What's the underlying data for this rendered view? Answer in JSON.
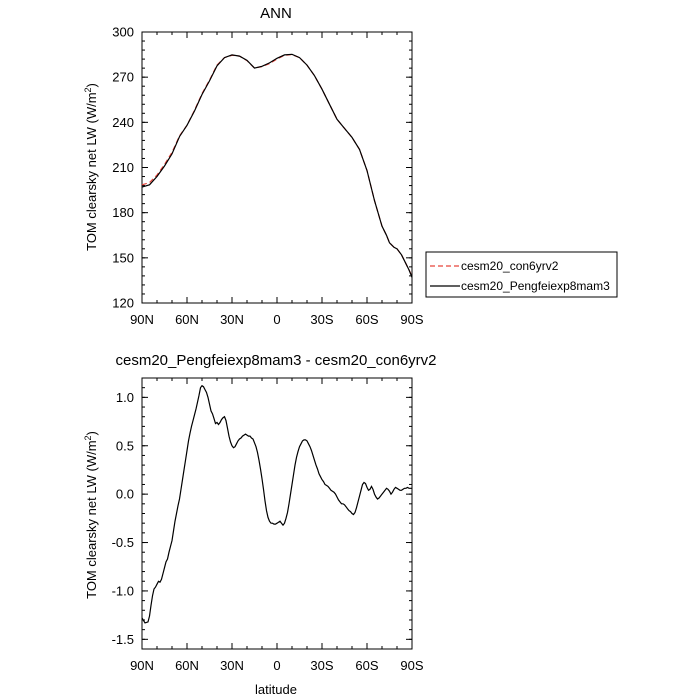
{
  "chart_data": [
    {
      "type": "line",
      "title": "ANN",
      "xlabel": "",
      "ylabel_main": "TOM clearsky net LW (W/m",
      "ylabel_sup": "2",
      "ylabel_tail": ")",
      "x_ticks": [
        -90,
        -60,
        -30,
        0,
        30,
        60,
        90
      ],
      "x_tick_labels": [
        "90N",
        "60N",
        "30N",
        "0",
        "30S",
        "60S",
        "90S"
      ],
      "xlim": [
        -90,
        90
      ],
      "ylim": [
        120,
        300
      ],
      "y_ticks": [
        120,
        150,
        180,
        210,
        240,
        270,
        300
      ],
      "y_tick_labels": [
        "120",
        "150",
        "180",
        "210",
        "240",
        "270",
        "300"
      ],
      "legend": {
        "placement": "right",
        "entries": [
          {
            "label": "cesm20_con6yrv2",
            "color": "#e8443a",
            "dash": true
          },
          {
            "label": "cesm20_Pengfeiexp8mam3",
            "color": "#000000",
            "dash": false
          }
        ]
      },
      "series": [
        {
          "name": "cesm20_con6yrv2",
          "color": "#e8443a",
          "x": [
            -90,
            -85,
            -80,
            -75,
            -70,
            -65,
            -60,
            -55,
            -50,
            -45,
            -40,
            -35,
            -30,
            -25,
            -20,
            -15,
            -10,
            -5,
            0,
            5,
            10,
            15,
            20,
            25,
            30,
            35,
            40,
            45,
            50,
            55,
            60,
            65,
            70,
            73,
            75,
            78,
            80,
            83,
            85,
            88,
            90
          ],
          "y": [
            198.5,
            200,
            205,
            212,
            220,
            231,
            238,
            248,
            259,
            268,
            278,
            283,
            284.5,
            284,
            281,
            276,
            277,
            279,
            282,
            284.5,
            285,
            283,
            278,
            271,
            262,
            252,
            242,
            236,
            230,
            222,
            208,
            188,
            171,
            165,
            160,
            157,
            156,
            152,
            148,
            142,
            138
          ]
        },
        {
          "name": "cesm20_Pengfeiexp8mam3",
          "color": "#000000",
          "x": [
            -90,
            -85,
            -80,
            -75,
            -70,
            -65,
            -60,
            -55,
            -50,
            -45,
            -40,
            -35,
            -30,
            -25,
            -20,
            -15,
            -10,
            -5,
            0,
            5,
            10,
            15,
            20,
            25,
            30,
            35,
            40,
            45,
            50,
            55,
            60,
            65,
            70,
            73,
            75,
            78,
            80,
            83,
            85,
            88,
            90
          ],
          "y": [
            197,
            198.5,
            204,
            211,
            219,
            230.5,
            238,
            247.5,
            258.5,
            267.5,
            277.5,
            283,
            284.8,
            284,
            281.2,
            276,
            277.2,
            279.5,
            282.5,
            284.8,
            285.2,
            283,
            278,
            271,
            262,
            252,
            242,
            236,
            230,
            222,
            208,
            188,
            171,
            165,
            160,
            157,
            156,
            152,
            148,
            142,
            137
          ]
        }
      ]
    },
    {
      "type": "line",
      "title": "cesm20_Pengfeiexp8mam3 - cesm20_con6yrv2",
      "xlabel": "latitude",
      "ylabel_main": "TOM clearsky net LW (W/m",
      "ylabel_sup": "2",
      "ylabel_tail": ")",
      "x_ticks": [
        -90,
        -60,
        -30,
        0,
        30,
        60,
        90
      ],
      "x_tick_labels": [
        "90N",
        "60N",
        "30N",
        "0",
        "30S",
        "60S",
        "90S"
      ],
      "xlim": [
        -90,
        90
      ],
      "ylim": [
        -1.6,
        1.2
      ],
      "y_ticks": [
        -1.5,
        -1.0,
        -0.5,
        0.0,
        0.5,
        1.0
      ],
      "y_tick_labels": [
        "-1.5",
        "-1.0",
        "-0.5",
        "0.0",
        "0.5",
        "1.0"
      ],
      "series": [
        {
          "name": "cesm20_Pengfeiexp8mam3 - cesm20_con6yrv2",
          "color": "#000000",
          "x": [
            -90,
            -88,
            -86,
            -85,
            -84,
            -83,
            -82,
            -81,
            -80,
            -79,
            -78,
            -77,
            -76,
            -75,
            -74,
            -73,
            -72,
            -71,
            -70,
            -69,
            -68,
            -67,
            -66,
            -65,
            -64,
            -63,
            -62,
            -61,
            -60,
            -59,
            -58,
            -57,
            -56,
            -55,
            -54,
            -53,
            -52,
            -51,
            -50,
            -49,
            -48,
            -47,
            -46,
            -45,
            -44,
            -43,
            -42,
            -41,
            -40,
            -39,
            -38,
            -37,
            -36,
            -35,
            -34,
            -33,
            -32,
            -31,
            -30,
            -29,
            -28,
            -27,
            -26,
            -25,
            -24,
            -23,
            -22,
            -21,
            -20,
            -19,
            -18,
            -17,
            -16,
            -15,
            -14,
            -13,
            -12,
            -11,
            -10,
            -9,
            -8,
            -7,
            -6,
            -5,
            -4,
            -3,
            -2,
            -1,
            0,
            1,
            2,
            3,
            4,
            5,
            6,
            7,
            8,
            9,
            10,
            11,
            12,
            13,
            14,
            15,
            16,
            17,
            18,
            19,
            20,
            21,
            22,
            23,
            24,
            25,
            26,
            27,
            28,
            29,
            30,
            31,
            32,
            33,
            34,
            35,
            36,
            37,
            38,
            39,
            40,
            41,
            42,
            43,
            44,
            45,
            46,
            47,
            48,
            49,
            50,
            51,
            52,
            53,
            54,
            55,
            56,
            57,
            58,
            59,
            60,
            61,
            62,
            63,
            64,
            65,
            66,
            67,
            68,
            69,
            70,
            71,
            72,
            73,
            74,
            75,
            76,
            77,
            78,
            79,
            80,
            81,
            82,
            83,
            84,
            85,
            86,
            87,
            88,
            89,
            90
          ],
          "y": [
            -1.28,
            -1.33,
            -1.32,
            -1.26,
            -1.15,
            -1.05,
            -0.98,
            -0.96,
            -0.93,
            -0.9,
            -0.91,
            -0.88,
            -0.82,
            -0.76,
            -0.7,
            -0.67,
            -0.6,
            -0.54,
            -0.48,
            -0.38,
            -0.28,
            -0.2,
            -0.12,
            -0.05,
            0.05,
            0.15,
            0.25,
            0.35,
            0.45,
            0.55,
            0.63,
            0.7,
            0.76,
            0.82,
            0.88,
            0.95,
            1.02,
            1.1,
            1.12,
            1.11,
            1.08,
            1.05,
            1.0,
            0.93,
            0.86,
            0.83,
            0.78,
            0.73,
            0.74,
            0.72,
            0.74,
            0.77,
            0.79,
            0.8,
            0.76,
            0.68,
            0.6,
            0.54,
            0.5,
            0.48,
            0.49,
            0.52,
            0.55,
            0.57,
            0.58,
            0.6,
            0.61,
            0.62,
            0.61,
            0.6,
            0.6,
            0.58,
            0.57,
            0.53,
            0.49,
            0.43,
            0.35,
            0.26,
            0.16,
            0.05,
            -0.07,
            -0.17,
            -0.24,
            -0.28,
            -0.3,
            -0.3,
            -0.31,
            -0.31,
            -0.3,
            -0.29,
            -0.28,
            -0.3,
            -0.32,
            -0.3,
            -0.25,
            -0.19,
            -0.1,
            -0.0,
            0.1,
            0.2,
            0.3,
            0.38,
            0.44,
            0.49,
            0.52,
            0.55,
            0.56,
            0.56,
            0.55,
            0.52,
            0.49,
            0.45,
            0.4,
            0.35,
            0.3,
            0.26,
            0.21,
            0.18,
            0.15,
            0.13,
            0.1,
            0.09,
            0.08,
            0.06,
            0.04,
            0.03,
            0.02,
            0.0,
            -0.03,
            -0.06,
            -0.08,
            -0.1,
            -0.1,
            -0.11,
            -0.13,
            -0.15,
            -0.17,
            -0.18,
            -0.2,
            -0.21,
            -0.19,
            -0.14,
            -0.08,
            -0.02,
            0.04,
            0.1,
            0.12,
            0.11,
            0.07,
            0.04,
            0.05,
            0.08,
            0.05,
            0.0,
            -0.03,
            -0.05,
            -0.04,
            -0.02,
            0.0,
            0.02,
            0.04,
            0.06,
            0.05,
            0.03,
            0.0,
            0.02,
            0.05,
            0.07,
            0.06,
            0.05,
            0.04,
            0.04,
            0.05,
            0.06,
            0.06,
            0.07,
            0.06,
            0.06,
            0.06
          ]
        }
      ]
    }
  ]
}
